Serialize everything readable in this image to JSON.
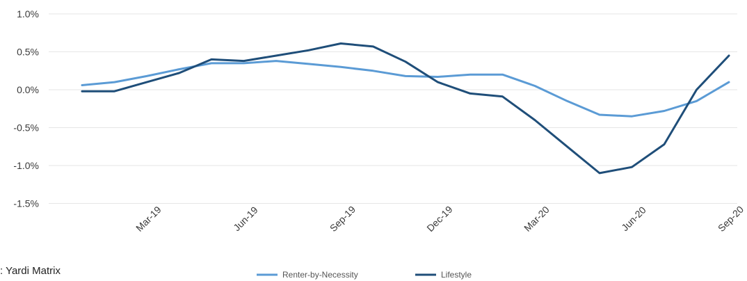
{
  "chart_data": {
    "type": "line",
    "title": "",
    "xlabel": "",
    "ylabel": "",
    "x": [
      "Jan-19",
      "Feb-19",
      "Mar-19",
      "Apr-19",
      "May-19",
      "Jun-19",
      "Jul-19",
      "Aug-19",
      "Sep-19",
      "Oct-19",
      "Nov-19",
      "Dec-19",
      "Jan-20",
      "Feb-20",
      "Mar-20",
      "Apr-20",
      "May-20",
      "Jun-20",
      "Jul-20",
      "Aug-20",
      "Sep-20"
    ],
    "x_tick_labels": [
      "Mar-19",
      "Jun-19",
      "Sep-19",
      "Dec-19",
      "Mar-20",
      "Jun-20",
      "Sep-20"
    ],
    "y_tick_labels": [
      "1.0%",
      "0.5%",
      "0.0%",
      "-0.5%",
      "-1.0%",
      "-1.5%"
    ],
    "y_ticks": [
      1.0,
      0.5,
      0.0,
      -0.5,
      -1.0,
      -1.5
    ],
    "ylim": [
      -1.5,
      1.0
    ],
    "y_unit": "%",
    "grid": "horizontal",
    "legend_position": "bottom-center",
    "series": [
      {
        "name": "Renter-by-Necessity",
        "color": "#5b9bd5",
        "values": [
          0.06,
          0.1,
          0.18,
          0.27,
          0.35,
          0.35,
          0.38,
          0.34,
          0.3,
          0.25,
          0.18,
          0.17,
          0.2,
          0.2,
          0.05,
          -0.15,
          -0.33,
          -0.35,
          -0.28,
          -0.15,
          0.1
        ]
      },
      {
        "name": "Lifestyle",
        "color": "#1f4e79",
        "values": [
          -0.02,
          -0.02,
          0.1,
          0.22,
          0.4,
          0.38,
          0.45,
          0.52,
          0.61,
          0.57,
          0.37,
          0.1,
          -0.05,
          -0.09,
          -0.4,
          -0.75,
          -1.1,
          -1.02,
          -0.72,
          0.0,
          0.45
        ]
      }
    ]
  },
  "source_text": ": Yardi Matrix"
}
